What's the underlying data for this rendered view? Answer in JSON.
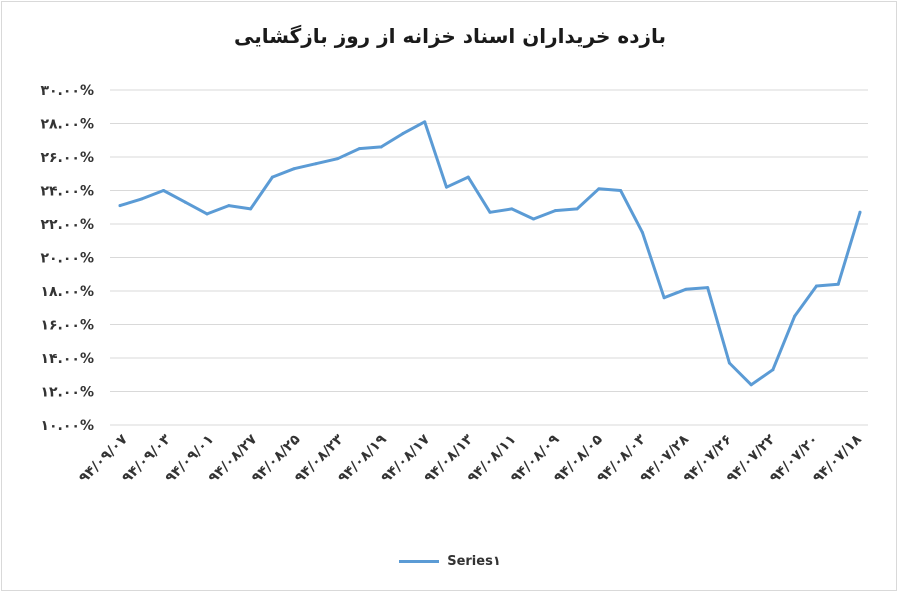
{
  "chart_data": {
    "type": "line",
    "title": "بازده خریداران اسناد خزانه از روز بازگشایی",
    "xlabel": "",
    "ylabel": "",
    "ylim": [
      10,
      30
    ],
    "y_ticks": [
      10,
      12,
      14,
      16,
      18,
      20,
      22,
      24,
      26,
      28,
      30
    ],
    "y_tick_labels": [
      "۱۰.۰۰%",
      "۱۲.۰۰%",
      "۱۴.۰۰%",
      "۱۶.۰۰%",
      "۱۸.۰۰%",
      "۲۰.۰۰%",
      "۲۲.۰۰%",
      "۲۴.۰۰%",
      "۲۶.۰۰%",
      "۲۸.۰۰%",
      "۳۰.۰۰%"
    ],
    "x_tick_labels": [
      "۹۴/۰۹/۰۷",
      "۹۴/۰۹/۰۳",
      "۹۴/۰۹/۰۱",
      "۹۴/۰۸/۲۷",
      "۹۴/۰۸/۲۵",
      "۹۴/۰۸/۲۳",
      "۹۴/۰۸/۱۹",
      "۹۴/۰۸/۱۷",
      "۹۴/۰۸/۱۳",
      "۹۴/۰۸/۱۱",
      "۹۴/۰۸/۰۹",
      "۹۴/۰۸/۰۵",
      "۹۴/۰۸/۰۳",
      "۹۴/۰۷/۲۸",
      "۹۴/۰۷/۲۶",
      "۹۴/۰۷/۲۲",
      "۹۴/۰۷/۲۰",
      "۹۴/۰۷/۱۸"
    ],
    "grid": true,
    "legend_position": "bottom",
    "series": [
      {
        "name": "Series۱",
        "color": "#5b9bd5",
        "values": [
          23.1,
          23.5,
          24.0,
          23.3,
          22.6,
          23.1,
          22.9,
          24.8,
          25.3,
          25.6,
          25.9,
          26.5,
          26.6,
          27.4,
          28.1,
          24.2,
          24.8,
          22.7,
          22.9,
          22.3,
          22.8,
          22.9,
          24.1,
          24.0,
          21.5,
          17.6,
          18.1,
          18.2,
          13.7,
          12.4,
          13.3,
          16.5,
          18.3,
          18.4,
          22.7
        ]
      }
    ]
  }
}
